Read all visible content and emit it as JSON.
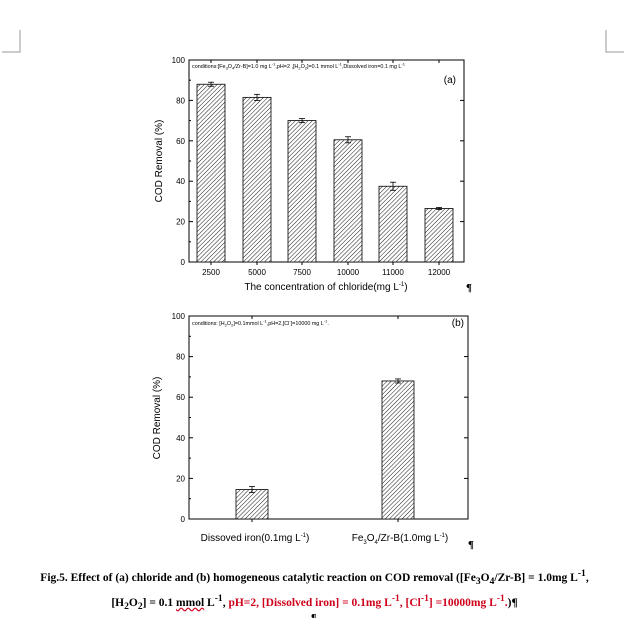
{
  "chart_data": [
    {
      "type": "bar",
      "panel_label": "(a)",
      "conditions": {
        "pre": "conditions:[Fe",
        "s1": "3",
        "m1": "O",
        "s2": "4",
        "m2": "/Zr-B]=1.0 mg L",
        "sup1": "-1",
        "m3": ",pH=2 ,[H",
        "s3": "2",
        "m4": "O",
        "s4": "2",
        "m5": "]=0.1 mmol L",
        "sup2": "-1",
        "m6": ",Dissolved iron=0.1 mg L",
        "sup3": "-1"
      },
      "categories": [
        "2500",
        "5000",
        "7500",
        "10000",
        "11000",
        "12000"
      ],
      "values": [
        88,
        81.5,
        70,
        60.5,
        37.5,
        26.5
      ],
      "errors": [
        1,
        1.5,
        1,
        1.5,
        2,
        0.5
      ],
      "xlabel_pre": "The concentration of chloride(mg L",
      "xlabel_sup": "-1",
      "xlabel_post": ")",
      "ylabel": "COD Removal (%)",
      "ylim": [
        0,
        100
      ],
      "yticks": [
        "0",
        "20",
        "40",
        "60",
        "80",
        "100"
      ]
    },
    {
      "type": "bar",
      "panel_label": "(b)",
      "conditions": {
        "pre": "conditions: [H",
        "s1": "2",
        "m1": "O",
        "s2": "2",
        "m2": "]=0.1mmol L",
        "sup1": "-1",
        "m3": ",pH=2,[Cl",
        "sup2": "-",
        "m4": "]=10000 mg L",
        "sup3": "-1",
        "m5": "."
      },
      "categories": [
        {
          "pre": "Dissoved iron(0.1mg L",
          "sup": "-1",
          "post": ")"
        },
        {
          "pre": "Fe",
          "sub1": "3",
          "mid": "O",
          "sub2": "4",
          "post1": "/Zr-B(1.0mg L",
          "sup": "-1",
          "post2": ")"
        }
      ],
      "values": [
        14.5,
        68
      ],
      "errors": [
        1.5,
        1
      ],
      "ylabel": "COD Removal (%)",
      "ylim": [
        0,
        100
      ],
      "yticks": [
        "0",
        "20",
        "40",
        "60",
        "80",
        "100"
      ]
    }
  ],
  "caption": {
    "line1": {
      "a": "Fig.5. Effect of (a) chloride and (b) homogeneous catalytic reaction on COD removal ([Fe",
      "s1": "3",
      "b": "O",
      "s2": "4",
      "c": "/Zr-B] = 1.0mg L",
      "sup1": "-1",
      "d": ", "
    },
    "line2": {
      "a": "[H",
      "s1": "2",
      "b": "O",
      "s2": "2",
      "c": "] = 0.1 ",
      "ul": "mmol",
      "d": " L",
      "sup1": "-1",
      "e": ", ",
      "red1": "pH=2, [Dissolved iron] = 0.1mg L",
      "rsup1": "-1",
      "red2": ", [Cl",
      "rsup2": "-1",
      "red3": "] =10000mg L",
      "rsup3": "-1",
      "red4": ".",
      "f": ")¶"
    }
  },
  "marks": {
    "pilcrow": "¶"
  }
}
